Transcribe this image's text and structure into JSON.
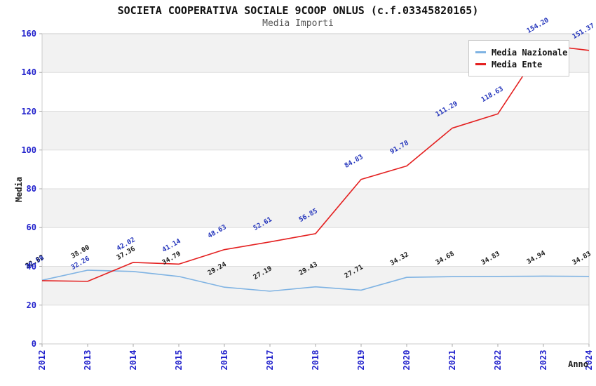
{
  "header": {
    "title": "SOCIETA COOPERATIVA SOCIALE 9COOP ONLUS (c.f.03345820165)",
    "subtitle": "Media Importi"
  },
  "axes": {
    "y_label": "Media",
    "x_label": "Anno",
    "y_ticks": [
      0,
      20,
      40,
      60,
      80,
      100,
      120,
      140,
      160
    ],
    "x_ticks": [
      "2012",
      "2013",
      "2014",
      "2015",
      "2016",
      "2017",
      "2018",
      "2019",
      "2020",
      "2021",
      "2022",
      "2023",
      "2024"
    ]
  },
  "colors": {
    "tick_blue": "#2222cc",
    "band_gray": "#f2f2f2",
    "grid_line": "#dddddd",
    "plot_border": "#cccccc",
    "tick_mark": "#aaaaaa",
    "title_text": "#111111",
    "subtitle_text": "#555555"
  },
  "legend": {
    "position": "top-right"
  },
  "chart_data": {
    "type": "line",
    "title": "SOCIETA COOPERATIVA SOCIALE 9COOP ONLUS (c.f.03345820165)",
    "subtitle": "Media Importi",
    "xlabel": "Anno",
    "ylabel": "Media",
    "ylim": [
      0,
      160
    ],
    "grid": true,
    "legend_position": "top-right",
    "background_bands": "alternating gray/white every 20 units",
    "x": [
      2012,
      2013,
      2014,
      2015,
      2016,
      2017,
      2018,
      2019,
      2020,
      2021,
      2022,
      2023,
      2024
    ],
    "series": [
      {
        "name": "Media Nazionale",
        "color": "#7fb3e3",
        "label_color": "#1a1a1a",
        "values": [
          32.82,
          38.0,
          37.36,
          34.79,
          29.24,
          27.19,
          29.43,
          27.71,
          34.32,
          34.68,
          34.83,
          34.94,
          34.83
        ]
      },
      {
        "name": "Media Ente",
        "color": "#e42020",
        "label_color": "#2233bb",
        "values": [
          32.59,
          32.26,
          42.02,
          41.14,
          48.63,
          52.61,
          56.85,
          84.83,
          91.78,
          111.29,
          118.63,
          154.2,
          151.37
        ]
      }
    ]
  }
}
